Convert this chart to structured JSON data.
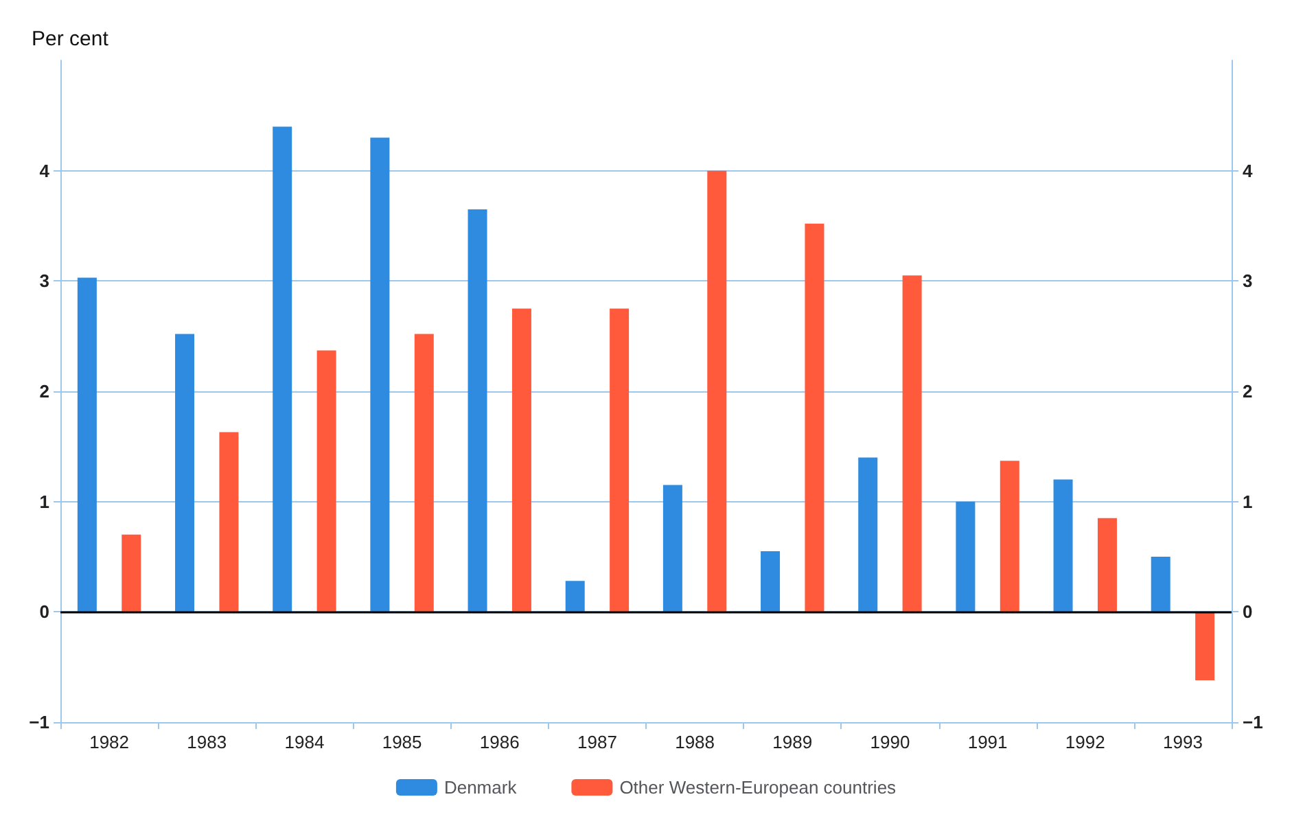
{
  "chart_data": {
    "type": "bar",
    "ylabel": "Per cent",
    "categories": [
      "1982",
      "1983",
      "1984",
      "1985",
      "1986",
      "1987",
      "1988",
      "1989",
      "1990",
      "1991",
      "1992",
      "1993"
    ],
    "series": [
      {
        "name": "Denmark",
        "color": "#2f8be0",
        "values": [
          3.03,
          2.52,
          4.4,
          4.3,
          3.65,
          0.28,
          1.15,
          0.55,
          1.4,
          1.0,
          1.2,
          0.5
        ]
      },
      {
        "name": "Other Western-European countries",
        "color": "#ff5a3c",
        "values": [
          0.7,
          1.63,
          2.37,
          2.52,
          2.75,
          2.75,
          4.0,
          3.52,
          3.05,
          1.37,
          0.85,
          -0.62
        ]
      }
    ],
    "ylim": [
      -1,
      5
    ],
    "yticks": [
      -1,
      0,
      1,
      2,
      3,
      4
    ],
    "y2lim": [
      -1,
      5
    ],
    "y2ticks": [
      -1,
      0,
      1,
      2,
      3,
      4
    ],
    "grid": "y",
    "legend": "bottom"
  }
}
